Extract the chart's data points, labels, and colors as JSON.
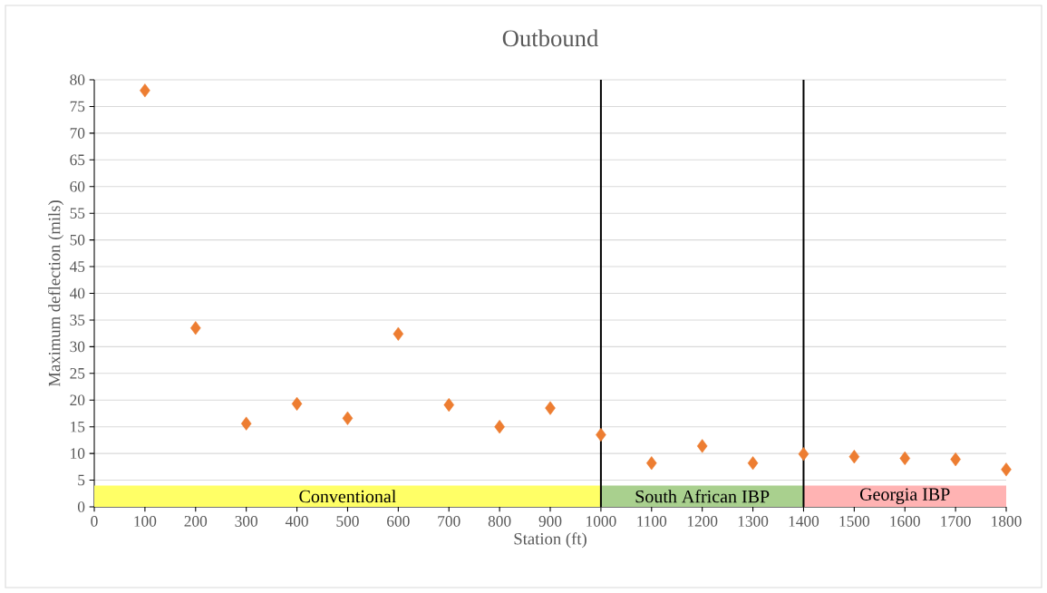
{
  "chart_data": {
    "type": "scatter",
    "title": "Outbound",
    "xlabel": "Station (ft)",
    "ylabel": "Maximum deflection (mils)",
    "x": [
      100,
      200,
      300,
      400,
      500,
      600,
      700,
      800,
      900,
      1000,
      1100,
      1200,
      1300,
      1400,
      1500,
      1600,
      1700,
      1800
    ],
    "series": [
      {
        "color": "#ed7d31",
        "values": [
          78,
          33.5,
          15.6,
          19.3,
          16.6,
          32.4,
          19.1,
          15.0,
          18.5,
          13.5,
          8.2,
          11.4,
          8.2,
          9.9,
          9.4,
          9.1,
          8.9,
          7.0
        ]
      }
    ],
    "marker": "diamond",
    "grid": "y",
    "xlim": [
      0,
      1800
    ],
    "xticks": [
      0,
      100,
      200,
      300,
      400,
      500,
      600,
      700,
      800,
      900,
      1000,
      1100,
      1200,
      1300,
      1400,
      1500,
      1600,
      1700,
      1800
    ],
    "ylim": [
      0,
      80
    ],
    "yticks": [
      0,
      5,
      10,
      15,
      20,
      25,
      30,
      35,
      40,
      45,
      50,
      55,
      60,
      65,
      70,
      75,
      80
    ],
    "ref_lines": [
      {
        "axis": "x",
        "value": 1000,
        "color": "#000000"
      },
      {
        "axis": "x",
        "value": 1400,
        "color": "#000000"
      }
    ],
    "bands": [
      {
        "axis": "x",
        "from": 0,
        "to": 1000,
        "label": "Conventional",
        "color": "#ffff66"
      },
      {
        "axis": "x",
        "from": 1000,
        "to": 1400,
        "label": "South African IBP",
        "color": "#a9d08e"
      },
      {
        "axis": "x",
        "from": 1400,
        "to": 1800,
        "label": "Georgia IBP",
        "color": "#ffb3b3"
      }
    ]
  }
}
